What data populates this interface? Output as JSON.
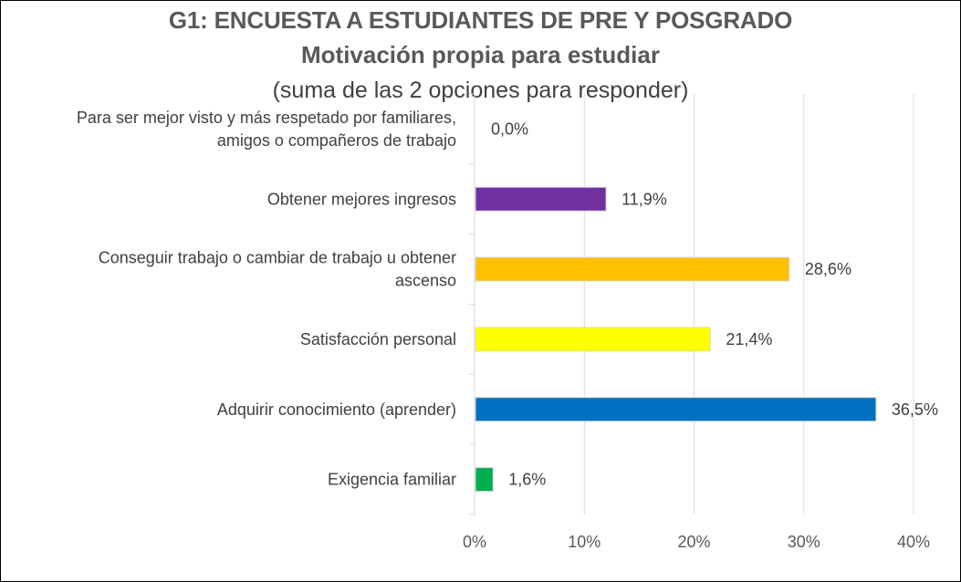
{
  "chart_data": {
    "type": "bar",
    "orientation": "horizontal",
    "title": "G1: ENCUESTA A ESTUDIANTES DE PRE Y POSGRADO",
    "subtitle": "Motivación propia para estudiar",
    "note": "(suma de las 2 opciones para responder)",
    "categories": [
      [
        "Para ser mejor visto y más respetado por familiares,",
        "amigos o compañeros de trabajo"
      ],
      [
        "Obtener mejores ingresos"
      ],
      [
        "Conseguir trabajo o cambiar de trabajo u obtener",
        "ascenso"
      ],
      [
        "Satisfacción personal"
      ],
      [
        "Adquirir conocimiento (aprender)"
      ],
      [
        "Exigencia familiar"
      ]
    ],
    "values": [
      0.0,
      11.9,
      28.6,
      21.4,
      36.5,
      1.6
    ],
    "value_labels": [
      "0,0%",
      "11,9%",
      "28,6%",
      "21,4%",
      "36,5%",
      "1,6%"
    ],
    "colors": [
      "#7030A0",
      "#7030A0",
      "#FFC000",
      "#FFFF00",
      "#0070C0",
      "#00B050"
    ],
    "xlim": [
      0,
      40
    ],
    "xticks": [
      0,
      10,
      20,
      30,
      40
    ],
    "xtick_labels": [
      "0%",
      "10%",
      "20%",
      "30%",
      "40%"
    ],
    "xlabel": "",
    "ylabel": "",
    "grid": "vertical",
    "legend": "none"
  }
}
